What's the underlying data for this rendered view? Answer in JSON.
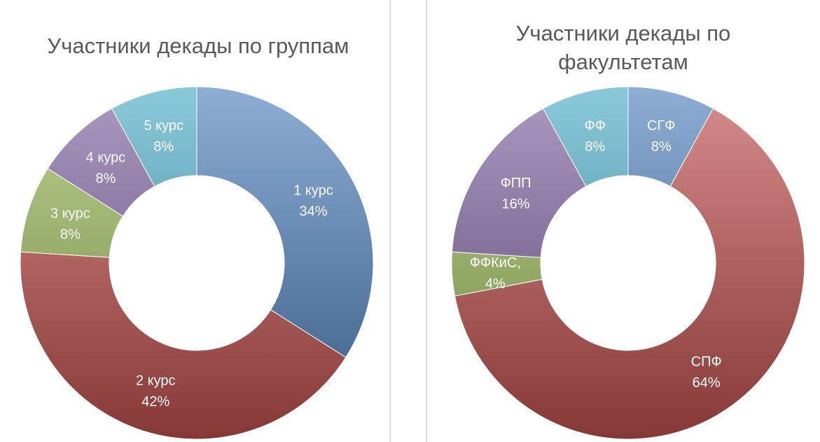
{
  "colors": {
    "blue": "#4f81bd",
    "red": "#c0504d",
    "green": "#9bbb59",
    "purple": "#8064a2",
    "aqua": "#4bacc6"
  },
  "chart_data": [
    {
      "type": "pie",
      "title_lines": [
        "Участники декады по группам"
      ],
      "slices": [
        {
          "label": "1 курс",
          "value_label": "34%",
          "value": 34,
          "color": "#4f81bd"
        },
        {
          "label": "2 курс",
          "value_label": "42%",
          "value": 42,
          "color": "#c0504d"
        },
        {
          "label": "3 курс",
          "value_label": "8%",
          "value": 8,
          "color": "#9bbb59"
        },
        {
          "label": "4 курс",
          "value_label": "8%",
          "value": 8,
          "color": "#8064a2"
        },
        {
          "label": "5 курс",
          "value_label": "8%",
          "value": 8,
          "color": "#4bacc6"
        }
      ]
    },
    {
      "type": "pie",
      "title_lines": [
        "Участники декады по",
        "факультетам"
      ],
      "slices": [
        {
          "label": "СГФ",
          "value_label": "8%",
          "value": 8,
          "color": "#4f81bd"
        },
        {
          "label": "СПФ",
          "value_label": "64%",
          "value": 64,
          "color": "#c0504d"
        },
        {
          "label": "ФФКиС,",
          "value_label": "4%",
          "value": 4,
          "color": "#9bbb59"
        },
        {
          "label": "ФПП",
          "value_label": "16%",
          "value": 16,
          "color": "#8064a2"
        },
        {
          "label": "ФФ",
          "value_label": "8%",
          "value": 8,
          "color": "#4bacc6"
        }
      ]
    }
  ]
}
